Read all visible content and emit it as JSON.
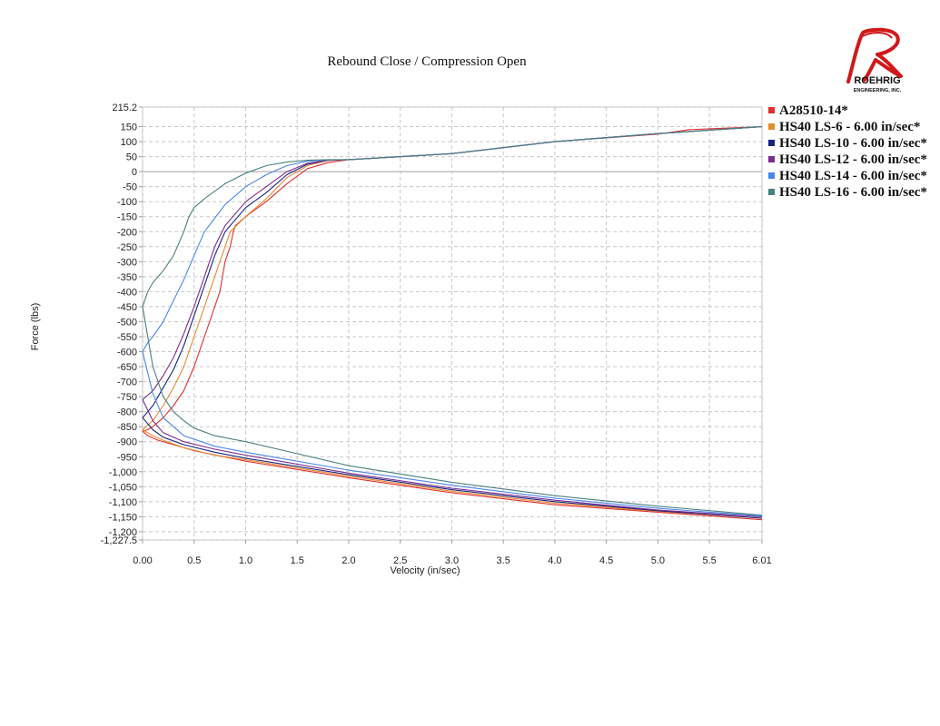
{
  "chart_data": {
    "type": "line",
    "title": "Rebound Close / Compression Open",
    "xlabel": "Velocity (in/sec)",
    "ylabel": "Force (lbs)",
    "xlim": [
      0,
      6.01
    ],
    "ylim": [
      -1227.5,
      215.2
    ],
    "x_ticks": [
      "0.00",
      "0.5",
      "1.0",
      "1.5",
      "2.0",
      "2.5",
      "3.0",
      "3.5",
      "4.0",
      "4.5",
      "5.0",
      "5.5",
      "6.01"
    ],
    "x_tick_values": [
      0,
      0.5,
      1.0,
      1.5,
      2.0,
      2.5,
      3.0,
      3.5,
      4.0,
      4.5,
      5.0,
      5.5,
      6.01
    ],
    "y_ticks": [
      "215.2",
      "150",
      "100",
      "50",
      "0",
      "-50",
      "-100",
      "-150",
      "-200",
      "-250",
      "-300",
      "-350",
      "-400",
      "-450",
      "-500",
      "-550",
      "-600",
      "-650",
      "-700",
      "-750",
      "-800",
      "-850",
      "-900",
      "-950",
      "-1,000",
      "-1,050",
      "-1,100",
      "-1,150",
      "-1,200",
      "-1,227.5"
    ],
    "y_tick_values": [
      215.2,
      150,
      100,
      50,
      0,
      -50,
      -100,
      -150,
      -200,
      -250,
      -300,
      -350,
      -400,
      -450,
      -500,
      -550,
      -600,
      -650,
      -700,
      -750,
      -800,
      -850,
      -900,
      -950,
      -1000,
      -1050,
      -1100,
      -1150,
      -1200,
      -1227.5
    ],
    "grid": true,
    "legend_position": "right",
    "series": [
      {
        "name": "A28510-14*",
        "color": "#e03030",
        "x": [
          6.01,
          5.5,
          5.3,
          5.0,
          4.0,
          3.0,
          2.0,
          1.8,
          1.6,
          1.4,
          1.2,
          1.0,
          0.9,
          0.88,
          0.85,
          0.8,
          0.75,
          0.65,
          0.5,
          0.4,
          0.3,
          0.2,
          0.1,
          0.05,
          0.0,
          0.0,
          0.05,
          0.15,
          0.3,
          0.5,
          1.0,
          2.0,
          3.0,
          4.0,
          5.0,
          6.01
        ],
        "y": [
          150,
          143,
          140,
          125,
          100,
          60,
          40,
          30,
          10,
          -40,
          -100,
          -150,
          -180,
          -200,
          -250,
          -300,
          -400,
          -500,
          -650,
          -730,
          -780,
          -820,
          -850,
          -860,
          -865,
          -865,
          -880,
          -895,
          -910,
          -930,
          -965,
          -1020,
          -1070,
          -1110,
          -1135,
          -1160
        ]
      },
      {
        "name": "HS40 LS-6 - 6.00 in/sec*",
        "color": "#e68a2e",
        "x": [
          6.01,
          5.0,
          4.0,
          3.0,
          2.0,
          1.8,
          1.6,
          1.4,
          1.2,
          1.0,
          0.85,
          0.8,
          0.7,
          0.6,
          0.5,
          0.4,
          0.3,
          0.2,
          0.1,
          0.0,
          0.0,
          0.1,
          0.2,
          0.4,
          0.7,
          1.0,
          2.0,
          3.0,
          4.0,
          5.0,
          6.01
        ],
        "y": [
          150,
          127,
          100,
          60,
          40,
          37,
          20,
          -20,
          -90,
          -150,
          -200,
          -250,
          -350,
          -450,
          -550,
          -650,
          -720,
          -780,
          -830,
          -860,
          -860,
          -880,
          -895,
          -920,
          -945,
          -960,
          -1015,
          -1065,
          -1105,
          -1132,
          -1155
        ]
      },
      {
        "name": "HS40 LS-10 - 6.00 in/sec*",
        "color": "#1a237e",
        "x": [
          6.01,
          5.0,
          4.0,
          3.0,
          2.0,
          1.8,
          1.6,
          1.4,
          1.2,
          1.0,
          0.8,
          0.7,
          0.6,
          0.5,
          0.4,
          0.3,
          0.2,
          0.1,
          0.0,
          0.0,
          0.1,
          0.2,
          0.4,
          0.7,
          1.0,
          2.0,
          3.0,
          4.0,
          5.0,
          6.01
        ],
        "y": [
          150,
          127,
          100,
          60,
          40,
          38,
          25,
          -10,
          -70,
          -120,
          -200,
          -280,
          -380,
          -480,
          -580,
          -660,
          -720,
          -780,
          -820,
          -820,
          -860,
          -885,
          -910,
          -935,
          -955,
          -1010,
          -1060,
          -1100,
          -1130,
          -1155
        ]
      },
      {
        "name": "HS40 LS-12 - 6.00 in/sec*",
        "color": "#7b2d8e",
        "x": [
          6.01,
          5.0,
          4.0,
          3.0,
          2.0,
          1.8,
          1.6,
          1.4,
          1.2,
          1.0,
          0.8,
          0.7,
          0.6,
          0.5,
          0.4,
          0.3,
          0.2,
          0.1,
          0.0,
          0.0,
          0.1,
          0.2,
          0.4,
          0.7,
          1.0,
          2.0,
          3.0,
          4.0,
          5.0,
          6.01
        ],
        "y": [
          150,
          127,
          100,
          60,
          40,
          38,
          28,
          0,
          -50,
          -100,
          -180,
          -250,
          -350,
          -450,
          -540,
          -620,
          -680,
          -730,
          -760,
          -760,
          -830,
          -870,
          -900,
          -925,
          -945,
          -1005,
          -1055,
          -1095,
          -1128,
          -1150
        ]
      },
      {
        "name": "HS40 LS-14 - 6.00 in/sec*",
        "color": "#4a86e8",
        "x": [
          6.01,
          5.0,
          4.0,
          3.0,
          2.0,
          1.8,
          1.6,
          1.4,
          1.2,
          1.0,
          0.8,
          0.6,
          0.5,
          0.4,
          0.3,
          0.2,
          0.1,
          0.05,
          0.0,
          0.0,
          0.1,
          0.2,
          0.4,
          0.7,
          1.0,
          2.0,
          3.0,
          4.0,
          5.0,
          6.01
        ],
        "y": [
          150,
          127,
          100,
          60,
          40,
          39,
          35,
          20,
          -10,
          -50,
          -110,
          -200,
          -280,
          -360,
          -430,
          -500,
          -550,
          -570,
          -600,
          -600,
          -740,
          -820,
          -880,
          -915,
          -935,
          -995,
          -1045,
          -1088,
          -1122,
          -1148
        ]
      },
      {
        "name": "HS40 LS-16 - 6.00 in/sec*",
        "color": "#4a8080",
        "x": [
          6.01,
          5.0,
          4.0,
          3.0,
          2.0,
          1.8,
          1.6,
          1.4,
          1.2,
          1.0,
          0.8,
          0.6,
          0.5,
          0.45,
          0.4,
          0.3,
          0.2,
          0.1,
          0.05,
          0.0,
          0.0,
          0.05,
          0.1,
          0.2,
          0.3,
          0.4,
          0.5,
          0.7,
          1.0,
          1.5,
          2.0,
          3.0,
          4.0,
          5.0,
          6.01
        ],
        "y": [
          150,
          127,
          100,
          60,
          40,
          40,
          38,
          32,
          20,
          -5,
          -40,
          -90,
          -120,
          -150,
          -200,
          -280,
          -330,
          -370,
          -400,
          -450,
          -450,
          -550,
          -650,
          -750,
          -800,
          -830,
          -855,
          -880,
          -900,
          -940,
          -980,
          -1035,
          -1080,
          -1115,
          -1145
        ]
      }
    ]
  },
  "logo": {
    "brand": "ROEHRIG",
    "sub": "ENGINEERING, INC."
  }
}
